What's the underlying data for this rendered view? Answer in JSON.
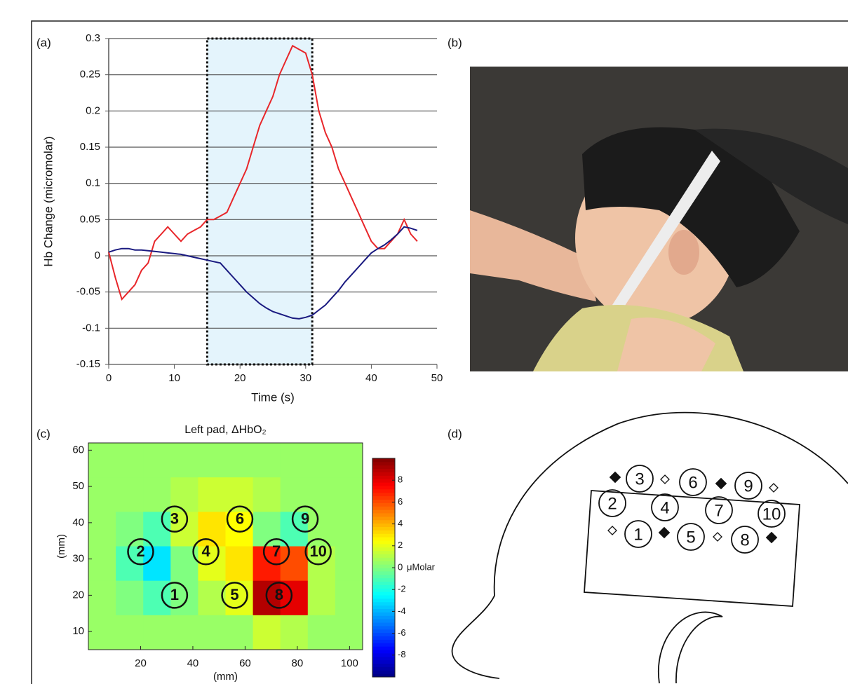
{
  "panel_labels": [
    "(a)",
    "(b)",
    "(c)",
    "(d)"
  ],
  "chart_data": [
    {
      "type": "line",
      "ylabel": "Hb Change (micromolar)",
      "xlabel": "Time (s)",
      "x": [
        0,
        1,
        2,
        3,
        4,
        5,
        6,
        7,
        8,
        9,
        10,
        11,
        12,
        13,
        14,
        15,
        16,
        17,
        18,
        19,
        20,
        21,
        22,
        23,
        24,
        25,
        26,
        27,
        28,
        29,
        30,
        31,
        32,
        33,
        34,
        35,
        36,
        37,
        38,
        39,
        40,
        41,
        42,
        43,
        44,
        45,
        46,
        47
      ],
      "series": [
        {
          "color": "#e8262a",
          "values": [
            0.005,
            -0.03,
            -0.06,
            -0.05,
            -0.04,
            -0.02,
            -0.01,
            0.02,
            0.03,
            0.04,
            0.03,
            0.02,
            0.03,
            0.035,
            0.04,
            0.05,
            0.05,
            0.055,
            0.06,
            0.08,
            0.1,
            0.12,
            0.15,
            0.18,
            0.2,
            0.22,
            0.25,
            0.27,
            0.29,
            0.285,
            0.28,
            0.25,
            0.2,
            0.17,
            0.15,
            0.12,
            0.1,
            0.08,
            0.06,
            0.04,
            0.02,
            0.01,
            0.01,
            0.02,
            0.03,
            0.05,
            0.03,
            0.02
          ]
        },
        {
          "color": "#1a1a80",
          "values": [
            0.005,
            0.008,
            0.01,
            0.01,
            0.008,
            0.008,
            0.007,
            0.006,
            0.005,
            0.004,
            0.003,
            0.002,
            0,
            -0.002,
            -0.004,
            -0.006,
            -0.008,
            -0.01,
            -0.02,
            -0.03,
            -0.04,
            -0.05,
            -0.058,
            -0.066,
            -0.072,
            -0.077,
            -0.08,
            -0.083,
            -0.086,
            -0.087,
            -0.085,
            -0.082,
            -0.075,
            -0.068,
            -0.058,
            -0.048,
            -0.036,
            -0.026,
            -0.016,
            -0.006,
            0.004,
            0.01,
            0.015,
            0.022,
            0.03,
            0.04,
            0.038,
            0.035
          ]
        }
      ],
      "shaded_interval": [
        15,
        31
      ],
      "shade_color": "#e4f4fc",
      "xlim": [
        0,
        50
      ],
      "ylim": [
        -0.15,
        0.3
      ],
      "xticks": [
        0,
        10,
        20,
        30,
        40,
        50
      ],
      "yticks": [
        -0.15,
        -0.1,
        -0.05,
        0,
        0.05,
        0.1,
        0.15,
        0.2,
        0.25,
        0.3
      ],
      "grid": true
    },
    {
      "type": "heatmap",
      "title": "Left pad, ΔHbO₂",
      "xlabel": "(mm)",
      "ylabel": "(mm)",
      "xlim": [
        0,
        105
      ],
      "ylim": [
        5,
        62
      ],
      "xticks": [
        20,
        40,
        60,
        80,
        100
      ],
      "yticks": [
        10,
        20,
        30,
        40,
        50,
        60
      ],
      "z": [
        [
          0.5,
          0.5,
          0.5,
          0.5,
          0.5,
          0.5,
          0.5,
          0.5,
          0.5,
          0.5
        ],
        [
          0.5,
          0.5,
          0.5,
          1,
          1.5,
          1.5,
          1,
          0.5,
          0.5,
          0.5
        ],
        [
          0.5,
          0,
          -1,
          1.5,
          3,
          2.5,
          0,
          -1,
          0.5,
          0.5
        ],
        [
          0.5,
          -1,
          -3,
          0,
          2,
          3,
          7,
          6,
          1,
          0.5
        ],
        [
          0.5,
          0,
          -1,
          0,
          1,
          2,
          9,
          8,
          1,
          0.5
        ],
        [
          0.5,
          0.5,
          0.5,
          0.5,
          0.5,
          0.5,
          1.5,
          1,
          0.5,
          0.5
        ]
      ],
      "clim": [
        -10,
        10
      ],
      "colormap": "jet",
      "colorbar_ticks": [
        -8,
        -6,
        -4,
        -2,
        0,
        2,
        4,
        6,
        8
      ],
      "colorbar_label": "μMolar",
      "markers": [
        {
          "label": "1",
          "x": 33,
          "y": 20
        },
        {
          "label": "2",
          "x": 20,
          "y": 32
        },
        {
          "label": "3",
          "x": 33,
          "y": 41
        },
        {
          "label": "4",
          "x": 45,
          "y": 32
        },
        {
          "label": "5",
          "x": 56,
          "y": 20
        },
        {
          "label": "6",
          "x": 58,
          "y": 41
        },
        {
          "label": "7",
          "x": 72,
          "y": 32
        },
        {
          "label": "8",
          "x": 73,
          "y": 20
        },
        {
          "label": "9",
          "x": 83,
          "y": 41
        },
        {
          "label": "10",
          "x": 88,
          "y": 32
        }
      ]
    }
  ],
  "diagram": {
    "optodes": [
      "1",
      "2",
      "3",
      "4",
      "5",
      "6",
      "7",
      "8",
      "9",
      "10"
    ]
  }
}
